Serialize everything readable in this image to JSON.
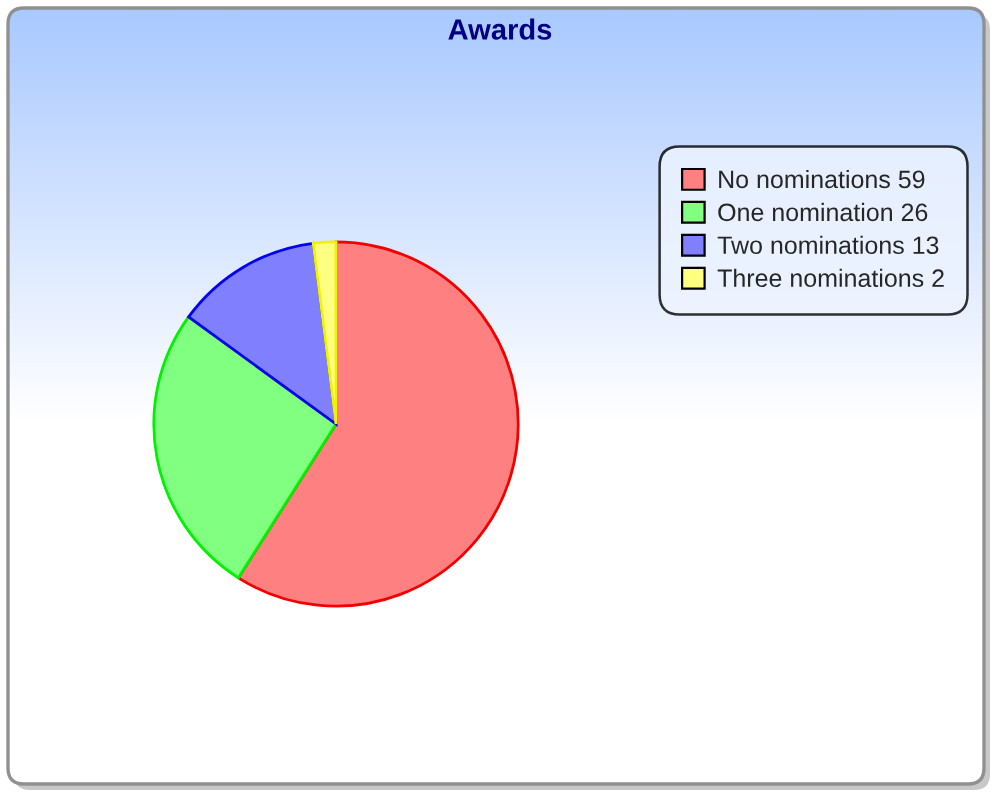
{
  "chart_data": {
    "type": "pie",
    "title": "Awards",
    "categories": [
      "No nominations 59",
      "One nomination 26",
      "Two nominations 13",
      "Three nominations 2"
    ],
    "values": [
      59,
      26,
      13,
      2
    ],
    "colors": [
      "#ff8080",
      "#80ff80",
      "#8080ff",
      "#ffff80"
    ],
    "legend": "top right"
  }
}
